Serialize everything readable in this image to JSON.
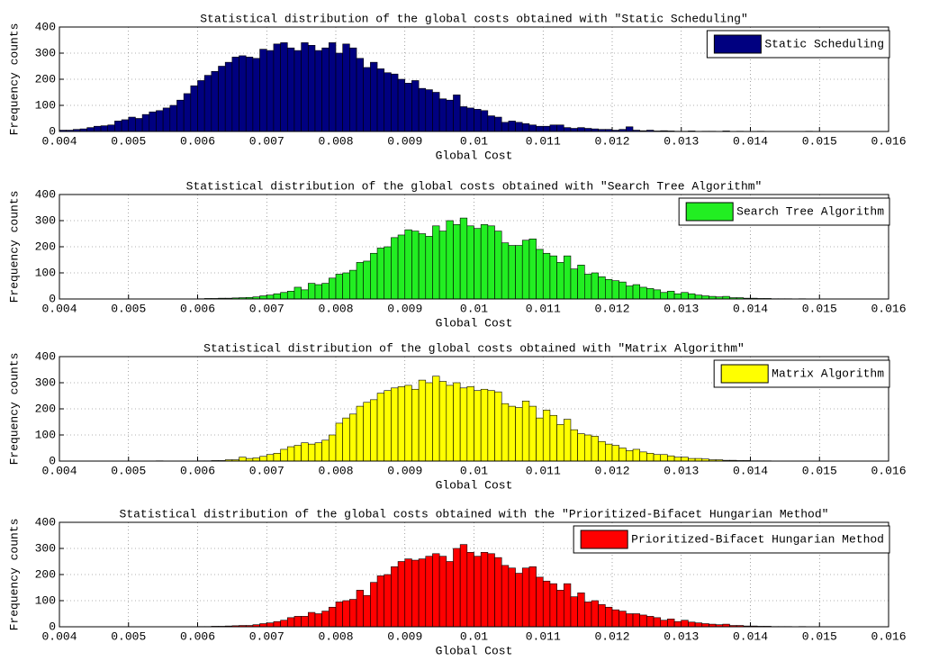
{
  "chart_data": [
    {
      "type": "histogram",
      "title": "Statistical distribution of the global costs obtained with \"Static Scheduling\"",
      "xlabel": "Global Cost",
      "ylabel": "Frequency counts",
      "legend": "northeast",
      "grid": true,
      "xlim": [
        0.004,
        0.016
      ],
      "xticks": [
        0.004,
        0.005,
        0.006,
        0.007,
        0.008,
        0.009,
        0.01,
        0.011,
        0.012,
        0.013,
        0.014,
        0.015,
        0.016
      ],
      "ylim": [
        0,
        400
      ],
      "yticks": [
        0,
        100,
        200,
        300,
        400
      ],
      "bins": [
        0.004,
        0.0041,
        0.0042,
        0.0043,
        0.0044,
        0.0045,
        0.0046,
        0.0047,
        0.0048,
        0.0049,
        0.005,
        0.0051,
        0.0052,
        0.0053,
        0.0054,
        0.0055,
        0.0056,
        0.0057,
        0.0058,
        0.0059,
        0.006,
        0.0061,
        0.0062,
        0.0063,
        0.0064,
        0.0065,
        0.0066,
        0.0067,
        0.0068,
        0.0069,
        0.007,
        0.0071,
        0.0072,
        0.0073,
        0.0074,
        0.0075,
        0.0076,
        0.0077,
        0.0078,
        0.0079,
        0.008,
        0.0081,
        0.0082,
        0.0083,
        0.0084,
        0.0085,
        0.0086,
        0.0087,
        0.0088,
        0.0089,
        0.009,
        0.0091,
        0.0092,
        0.0093,
        0.0094,
        0.0095,
        0.0096,
        0.0097,
        0.0098,
        0.0099,
        0.01,
        0.0101,
        0.0102,
        0.0103,
        0.0104,
        0.0105,
        0.0106,
        0.0107,
        0.0108,
        0.0109,
        0.011,
        0.0111,
        0.0112,
        0.0113,
        0.0114,
        0.0115,
        0.0116,
        0.0117,
        0.0118,
        0.0119,
        0.012,
        0.0121,
        0.0122,
        0.0123,
        0.0124,
        0.0125,
        0.0126,
        0.0127,
        0.0128,
        0.0129,
        0.013,
        0.0131,
        0.0132,
        0.0133,
        0.0134,
        0.0135,
        0.0136,
        0.0137,
        0.0138,
        0.0139,
        0.014,
        0.0141,
        0.0142,
        0.0143,
        0.0144,
        0.0145,
        0.0146,
        0.0147,
        0.0148,
        0.0149,
        0.015,
        0.0151,
        0.0152,
        0.0153,
        0.0154,
        0.0155,
        0.0156,
        0.0157,
        0.0158,
        0.0159,
        0.016
      ],
      "series": [
        {
          "name": "Static Scheduling",
          "color": "#000080",
          "values": [
            5,
            5,
            8,
            10,
            15,
            20,
            22,
            25,
            40,
            45,
            55,
            50,
            65,
            75,
            80,
            90,
            100,
            120,
            145,
            175,
            195,
            215,
            230,
            250,
            265,
            285,
            290,
            285,
            280,
            315,
            310,
            335,
            340,
            320,
            310,
            340,
            330,
            310,
            320,
            340,
            300,
            335,
            320,
            280,
            245,
            265,
            240,
            225,
            220,
            200,
            185,
            195,
            165,
            160,
            150,
            125,
            120,
            140,
            95,
            90,
            85,
            80,
            60,
            55,
            35,
            40,
            35,
            30,
            25,
            20,
            20,
            25,
            25,
            15,
            12,
            15,
            12,
            10,
            8,
            8,
            5,
            8,
            18,
            5,
            3,
            5,
            2,
            3,
            2,
            1,
            1,
            2,
            0,
            1,
            1,
            0,
            2,
            0,
            1,
            0,
            0,
            1,
            0,
            0,
            0,
            0,
            0,
            0,
            1,
            0,
            0,
            0,
            0,
            0,
            0,
            0,
            0,
            0,
            0,
            0
          ]
        }
      ]
    },
    {
      "type": "histogram",
      "title": "Statistical distribution of the global costs obtained with \"Search Tree Algorithm\"",
      "xlabel": "Global Cost",
      "ylabel": "Frequency counts",
      "legend": "northeast",
      "grid": true,
      "xlim": [
        0.004,
        0.016
      ],
      "xticks": [
        0.004,
        0.005,
        0.006,
        0.007,
        0.008,
        0.009,
        0.01,
        0.011,
        0.012,
        0.013,
        0.014,
        0.015,
        0.016
      ],
      "ylim": [
        0,
        400
      ],
      "yticks": [
        0,
        100,
        200,
        300,
        400
      ],
      "bins": [
        0.004,
        0.0041,
        0.0042,
        0.0043,
        0.0044,
        0.0045,
        0.0046,
        0.0047,
        0.0048,
        0.0049,
        0.005,
        0.0051,
        0.0052,
        0.0053,
        0.0054,
        0.0055,
        0.0056,
        0.0057,
        0.0058,
        0.0059,
        0.006,
        0.0061,
        0.0062,
        0.0063,
        0.0064,
        0.0065,
        0.0066,
        0.0067,
        0.0068,
        0.0069,
        0.007,
        0.0071,
        0.0072,
        0.0073,
        0.0074,
        0.0075,
        0.0076,
        0.0077,
        0.0078,
        0.0079,
        0.008,
        0.0081,
        0.0082,
        0.0083,
        0.0084,
        0.0085,
        0.0086,
        0.0087,
        0.0088,
        0.0089,
        0.009,
        0.0091,
        0.0092,
        0.0093,
        0.0094,
        0.0095,
        0.0096,
        0.0097,
        0.0098,
        0.0099,
        0.01,
        0.0101,
        0.0102,
        0.0103,
        0.0104,
        0.0105,
        0.0106,
        0.0107,
        0.0108,
        0.0109,
        0.011,
        0.0111,
        0.0112,
        0.0113,
        0.0114,
        0.0115,
        0.0116,
        0.0117,
        0.0118,
        0.0119,
        0.012,
        0.0121,
        0.0122,
        0.0123,
        0.0124,
        0.0125,
        0.0126,
        0.0127,
        0.0128,
        0.0129,
        0.013,
        0.0131,
        0.0132,
        0.0133,
        0.0134,
        0.0135,
        0.0136,
        0.0137,
        0.0138,
        0.0139,
        0.014,
        0.0141,
        0.0142,
        0.0143,
        0.0144,
        0.0145,
        0.0146,
        0.0147,
        0.0148,
        0.0149,
        0.015,
        0.0151,
        0.0152,
        0.0153,
        0.0154,
        0.0155,
        0.0156,
        0.0157,
        0.0158,
        0.0159,
        0.016
      ],
      "series": [
        {
          "name": "Search Tree Algorithm",
          "color": "#22ee22",
          "values": [
            0,
            0,
            0,
            0,
            0,
            0,
            0,
            0,
            0,
            0,
            0,
            0,
            0,
            0,
            0,
            0,
            0,
            0,
            0,
            0,
            1,
            2,
            2,
            3,
            3,
            4,
            5,
            6,
            8,
            12,
            15,
            20,
            25,
            30,
            45,
            35,
            60,
            55,
            60,
            80,
            95,
            100,
            110,
            140,
            145,
            175,
            195,
            200,
            235,
            245,
            265,
            260,
            250,
            240,
            280,
            260,
            300,
            285,
            310,
            280,
            270,
            285,
            280,
            260,
            215,
            205,
            205,
            225,
            230,
            190,
            175,
            165,
            140,
            165,
            115,
            130,
            95,
            100,
            85,
            75,
            70,
            65,
            50,
            55,
            45,
            40,
            35,
            25,
            30,
            20,
            25,
            20,
            15,
            12,
            10,
            8,
            10,
            5,
            5,
            3,
            3,
            2,
            2,
            1,
            1,
            1,
            0,
            1,
            0,
            0,
            0,
            0,
            0,
            0,
            0,
            0,
            0,
            0,
            0,
            0
          ]
        }
      ]
    },
    {
      "type": "histogram",
      "title": "Statistical distribution of the global costs obtained with \"Matrix Algorithm\"",
      "xlabel": "Global Cost",
      "ylabel": "Frequency counts",
      "legend": "northeast",
      "grid": true,
      "xlim": [
        0.004,
        0.016
      ],
      "xticks": [
        0.004,
        0.005,
        0.006,
        0.007,
        0.008,
        0.009,
        0.01,
        0.011,
        0.012,
        0.013,
        0.014,
        0.015,
        0.016
      ],
      "ylim": [
        0,
        400
      ],
      "yticks": [
        0,
        100,
        200,
        300,
        400
      ],
      "bins": [
        0.004,
        0.0041,
        0.0042,
        0.0043,
        0.0044,
        0.0045,
        0.0046,
        0.0047,
        0.0048,
        0.0049,
        0.005,
        0.0051,
        0.0052,
        0.0053,
        0.0054,
        0.0055,
        0.0056,
        0.0057,
        0.0058,
        0.0059,
        0.006,
        0.0061,
        0.0062,
        0.0063,
        0.0064,
        0.0065,
        0.0066,
        0.0067,
        0.0068,
        0.0069,
        0.007,
        0.0071,
        0.0072,
        0.0073,
        0.0074,
        0.0075,
        0.0076,
        0.0077,
        0.0078,
        0.0079,
        0.008,
        0.0081,
        0.0082,
        0.0083,
        0.0084,
        0.0085,
        0.0086,
        0.0087,
        0.0088,
        0.0089,
        0.009,
        0.0091,
        0.0092,
        0.0093,
        0.0094,
        0.0095,
        0.0096,
        0.0097,
        0.0098,
        0.0099,
        0.01,
        0.0101,
        0.0102,
        0.0103,
        0.0104,
        0.0105,
        0.0106,
        0.0107,
        0.0108,
        0.0109,
        0.011,
        0.0111,
        0.0112,
        0.0113,
        0.0114,
        0.0115,
        0.0116,
        0.0117,
        0.0118,
        0.0119,
        0.012,
        0.0121,
        0.0122,
        0.0123,
        0.0124,
        0.0125,
        0.0126,
        0.0127,
        0.0128,
        0.0129,
        0.013,
        0.0131,
        0.0132,
        0.0133,
        0.0134,
        0.0135,
        0.0136,
        0.0137,
        0.0138,
        0.0139,
        0.014,
        0.0141,
        0.0142,
        0.0143,
        0.0144,
        0.0145,
        0.0146,
        0.0147,
        0.0148,
        0.0149,
        0.015,
        0.0151,
        0.0152,
        0.0153,
        0.0154,
        0.0155,
        0.0156,
        0.0157,
        0.0158,
        0.0159,
        0.016
      ],
      "series": [
        {
          "name": "Matrix Algorithm",
          "color": "#ffff00",
          "values": [
            0,
            0,
            0,
            0,
            0,
            0,
            0,
            0,
            0,
            0,
            0,
            0,
            0,
            0,
            1,
            0,
            0,
            0,
            0,
            0,
            1,
            1,
            2,
            2,
            5,
            5,
            15,
            10,
            12,
            18,
            25,
            30,
            45,
            55,
            60,
            70,
            65,
            70,
            80,
            100,
            145,
            165,
            180,
            210,
            225,
            235,
            260,
            270,
            280,
            285,
            290,
            275,
            310,
            300,
            325,
            305,
            290,
            300,
            280,
            285,
            270,
            275,
            270,
            265,
            220,
            210,
            205,
            230,
            210,
            165,
            195,
            175,
            140,
            160,
            120,
            105,
            100,
            95,
            75,
            65,
            60,
            50,
            40,
            45,
            35,
            30,
            25,
            25,
            20,
            15,
            15,
            10,
            10,
            8,
            5,
            5,
            3,
            3,
            2,
            2,
            1,
            1,
            1,
            0,
            0,
            0,
            0,
            0,
            0,
            0,
            0,
            0,
            0,
            0,
            0,
            0,
            0,
            0,
            0,
            0
          ]
        }
      ]
    },
    {
      "type": "histogram",
      "title": "Statistical distribution of the global costs obtained with the \"Prioritized-Bifacet Hungarian Method\"",
      "xlabel": "Global Cost",
      "ylabel": "Frequency counts",
      "legend": "northeast",
      "grid": true,
      "xlim": [
        0.004,
        0.016
      ],
      "xticks": [
        0.004,
        0.005,
        0.006,
        0.007,
        0.008,
        0.009,
        0.01,
        0.011,
        0.012,
        0.013,
        0.014,
        0.015,
        0.016
      ],
      "ylim": [
        0,
        400
      ],
      "yticks": [
        0,
        100,
        200,
        300,
        400
      ],
      "bins": [
        0.004,
        0.0041,
        0.0042,
        0.0043,
        0.0044,
        0.0045,
        0.0046,
        0.0047,
        0.0048,
        0.0049,
        0.005,
        0.0051,
        0.0052,
        0.0053,
        0.0054,
        0.0055,
        0.0056,
        0.0057,
        0.0058,
        0.0059,
        0.006,
        0.0061,
        0.0062,
        0.0063,
        0.0064,
        0.0065,
        0.0066,
        0.0067,
        0.0068,
        0.0069,
        0.007,
        0.0071,
        0.0072,
        0.0073,
        0.0074,
        0.0075,
        0.0076,
        0.0077,
        0.0078,
        0.0079,
        0.008,
        0.0081,
        0.0082,
        0.0083,
        0.0084,
        0.0085,
        0.0086,
        0.0087,
        0.0088,
        0.0089,
        0.009,
        0.0091,
        0.0092,
        0.0093,
        0.0094,
        0.0095,
        0.0096,
        0.0097,
        0.0098,
        0.0099,
        0.01,
        0.0101,
        0.0102,
        0.0103,
        0.0104,
        0.0105,
        0.0106,
        0.0107,
        0.0108,
        0.0109,
        0.011,
        0.0111,
        0.0112,
        0.0113,
        0.0114,
        0.0115,
        0.0116,
        0.0117,
        0.0118,
        0.0119,
        0.012,
        0.0121,
        0.0122,
        0.0123,
        0.0124,
        0.0125,
        0.0126,
        0.0127,
        0.0128,
        0.0129,
        0.013,
        0.0131,
        0.0132,
        0.0133,
        0.0134,
        0.0135,
        0.0136,
        0.0137,
        0.0138,
        0.0139,
        0.014,
        0.0141,
        0.0142,
        0.0143,
        0.0144,
        0.0145,
        0.0146,
        0.0147,
        0.0148,
        0.0149,
        0.015,
        0.0151,
        0.0152,
        0.0153,
        0.0154,
        0.0155,
        0.0156,
        0.0157,
        0.0158,
        0.0159,
        0.016
      ],
      "series": [
        {
          "name": "Prioritized-Bifacet Hungarian Method",
          "color": "#ff0000",
          "values": [
            0,
            0,
            0,
            0,
            0,
            0,
            0,
            0,
            0,
            0,
            0,
            0,
            0,
            0,
            0,
            0,
            0,
            0,
            0,
            0,
            1,
            1,
            2,
            2,
            3,
            4,
            5,
            5,
            8,
            12,
            15,
            20,
            25,
            35,
            40,
            40,
            55,
            50,
            60,
            75,
            95,
            100,
            105,
            140,
            120,
            170,
            195,
            200,
            230,
            250,
            260,
            255,
            260,
            270,
            280,
            270,
            250,
            300,
            315,
            285,
            270,
            285,
            280,
            265,
            235,
            225,
            205,
            225,
            230,
            190,
            175,
            165,
            140,
            165,
            115,
            130,
            95,
            100,
            85,
            75,
            65,
            60,
            50,
            50,
            45,
            40,
            35,
            25,
            30,
            20,
            25,
            18,
            15,
            12,
            10,
            8,
            10,
            5,
            5,
            3,
            3,
            2,
            2,
            1,
            1,
            1,
            0,
            1,
            0,
            0,
            0,
            0,
            0,
            0,
            0,
            0,
            0,
            0,
            0,
            0
          ]
        }
      ]
    }
  ]
}
